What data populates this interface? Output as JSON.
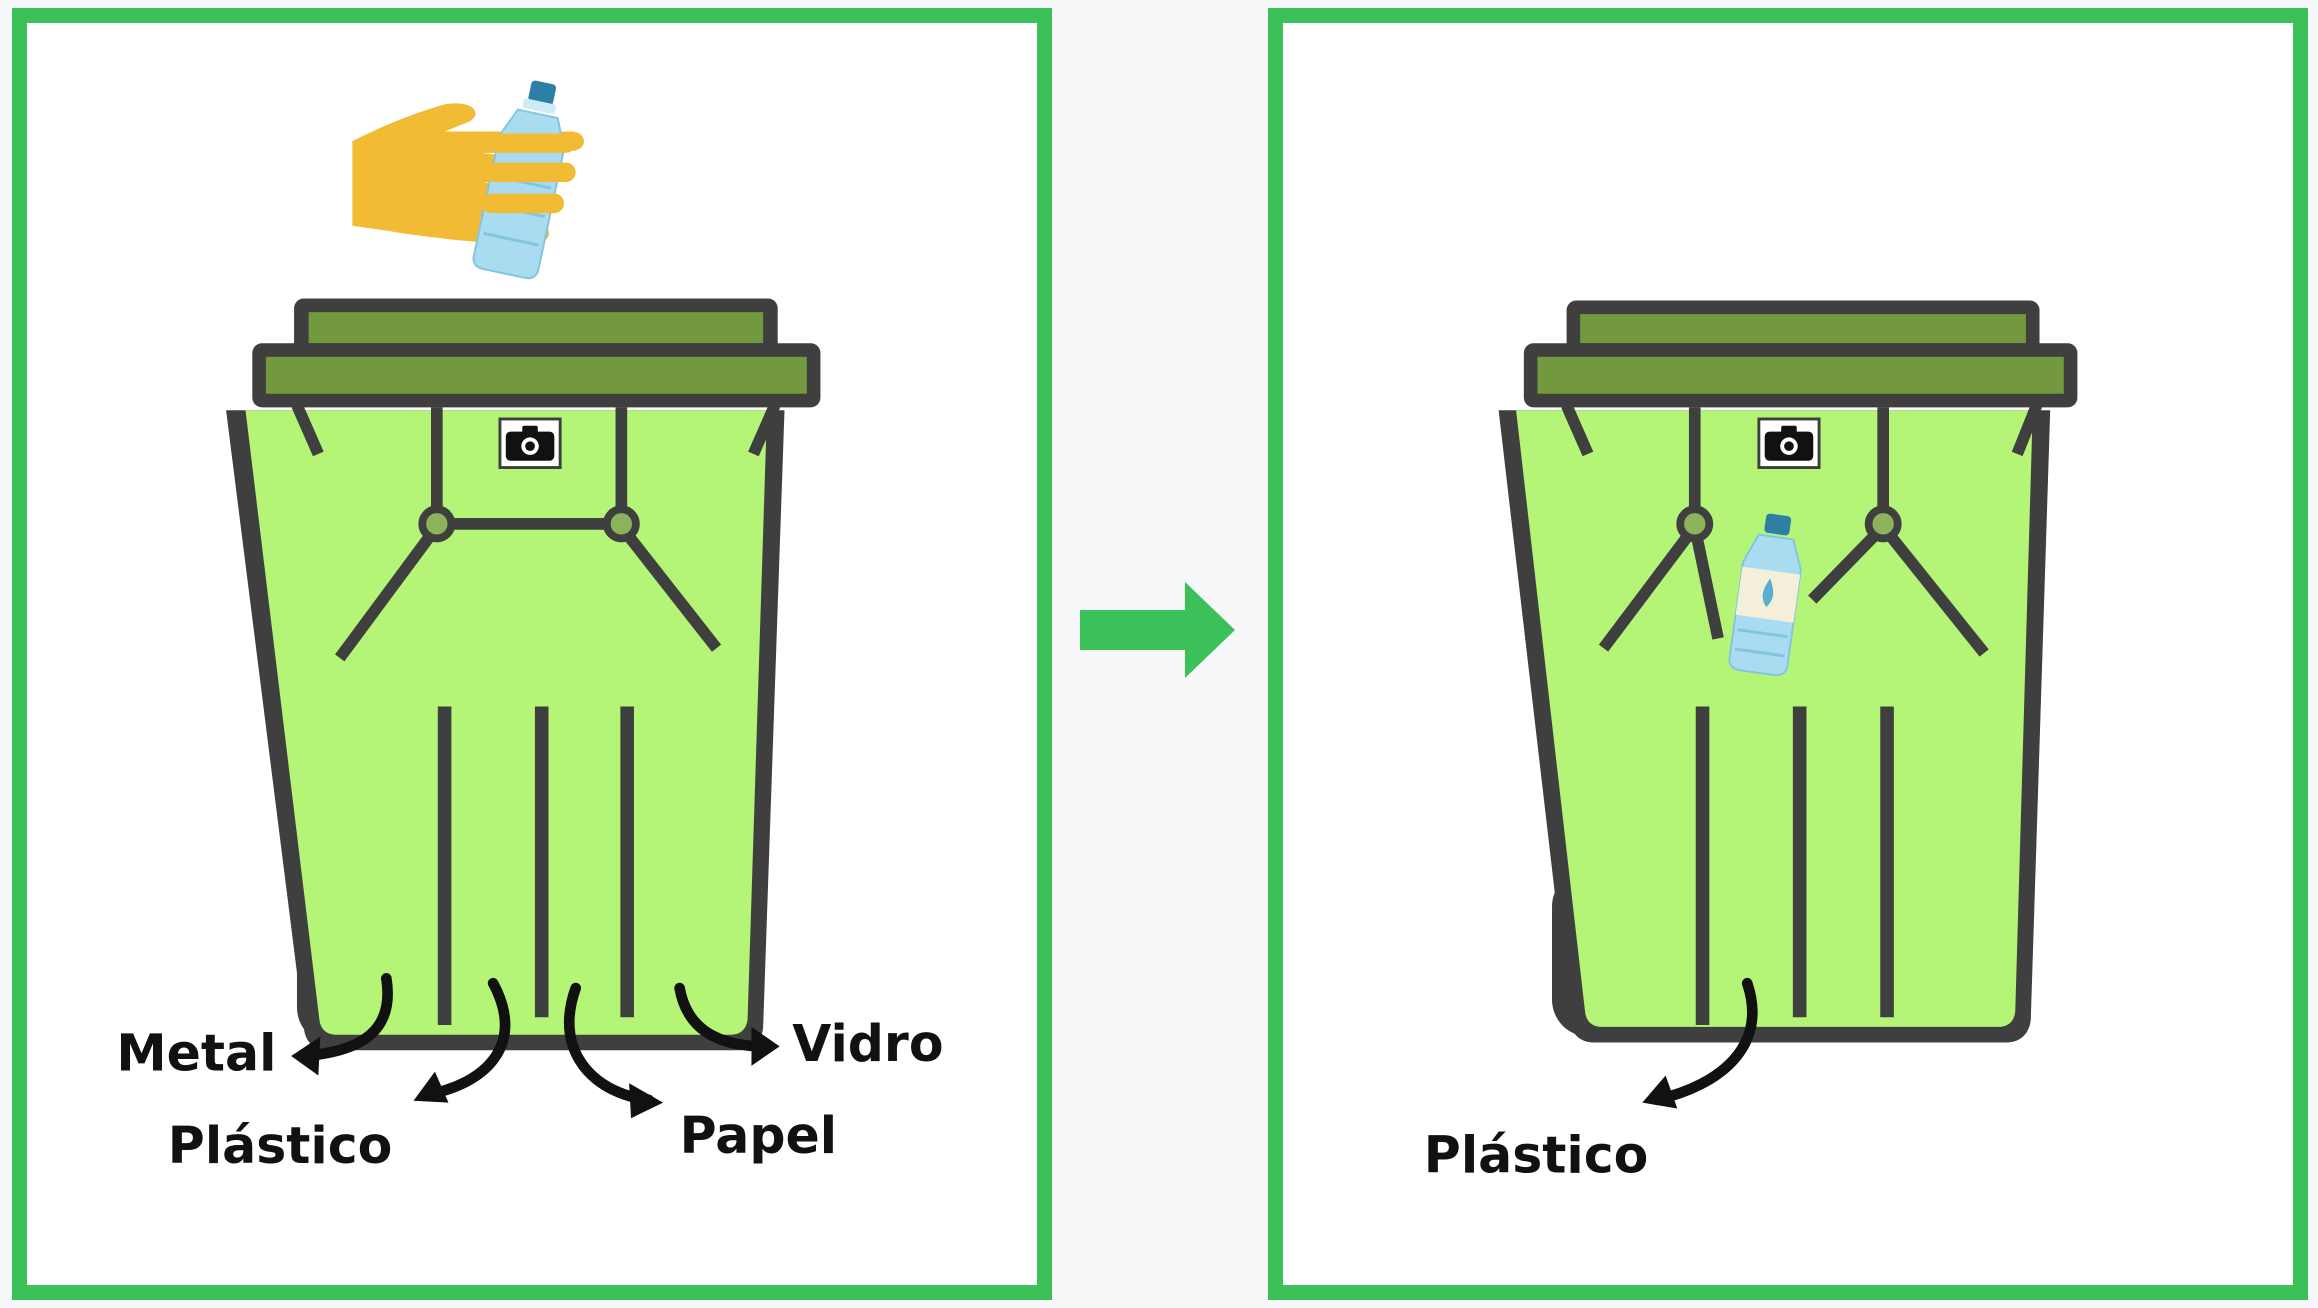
{
  "colors": {
    "frame": "#3cc05a",
    "bin_body": "#b4f577",
    "bin_outline": "#3f3f3f",
    "bin_lid": "#72993e",
    "wheel": "#3f3f3f",
    "hand": "#f1bc34",
    "bottle": "#a9dcf0",
    "cap": "#2e7fa6",
    "arrow": "#3cc05a"
  },
  "before": {
    "labels": {
      "metal": "Metal",
      "plastic": "Plástico",
      "paper": "Papel",
      "glass": "Vidro"
    },
    "icons": [
      "hand-icon",
      "water-bottle-icon",
      "camera-icon",
      "trash-bin-icon"
    ]
  },
  "after": {
    "labels": {
      "plastic": "Plástico"
    },
    "icons": [
      "water-bottle-icon",
      "camera-icon",
      "trash-bin-icon"
    ]
  },
  "transition": {
    "icon": "right-arrow-icon"
  }
}
